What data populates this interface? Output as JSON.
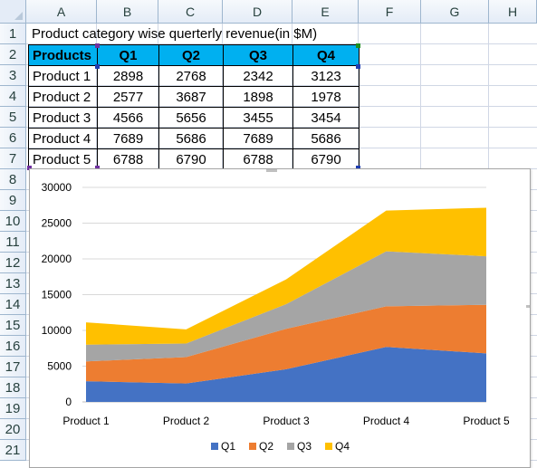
{
  "columns": [
    "A",
    "B",
    "C",
    "D",
    "E",
    "F",
    "G",
    "H"
  ],
  "rows": [
    "1",
    "2",
    "3",
    "4",
    "5",
    "6",
    "7",
    "8",
    "9",
    "10",
    "11",
    "12",
    "13",
    "14",
    "15",
    "16",
    "17",
    "18",
    "19",
    "20",
    "21"
  ],
  "sheet_title": "Product category wise querterly revenue(in $M)",
  "table": {
    "headers": [
      "Products",
      "Q1",
      "Q2",
      "Q3",
      "Q4"
    ],
    "rows": [
      [
        "Product 1",
        "2898",
        "2768",
        "2342",
        "3123"
      ],
      [
        "Product 2",
        "2577",
        "3687",
        "1898",
        "1978"
      ],
      [
        "Product 3",
        "4566",
        "5656",
        "3455",
        "3454"
      ],
      [
        "Product 4",
        "7689",
        "5686",
        "7689",
        "5686"
      ],
      [
        "Product 5",
        "6788",
        "6790",
        "6788",
        "6790"
      ]
    ],
    "header_color": "#00b0f0"
  },
  "chart_data": {
    "type": "area",
    "stacked": true,
    "categories": [
      "Product 1",
      "Product 2",
      "Product 3",
      "Product 4",
      "Product 5"
    ],
    "series": [
      {
        "name": "Q1",
        "values": [
          2898,
          2577,
          4566,
          7689,
          6788
        ],
        "color": "#4472c4"
      },
      {
        "name": "Q2",
        "values": [
          2768,
          3687,
          5656,
          5686,
          6790
        ],
        "color": "#ed7d31"
      },
      {
        "name": "Q3",
        "values": [
          2342,
          1898,
          3455,
          7689,
          6788
        ],
        "color": "#a5a5a5"
      },
      {
        "name": "Q4",
        "values": [
          3123,
          1978,
          3454,
          5686,
          6790
        ],
        "color": "#ffc000"
      }
    ],
    "y_ticks": [
      "0",
      "5000",
      "10000",
      "15000",
      "20000",
      "25000",
      "30000"
    ],
    "ylim": [
      0,
      30000
    ],
    "grid": true,
    "legend_position": "bottom",
    "title": "",
    "xlabel": "",
    "ylabel": ""
  }
}
